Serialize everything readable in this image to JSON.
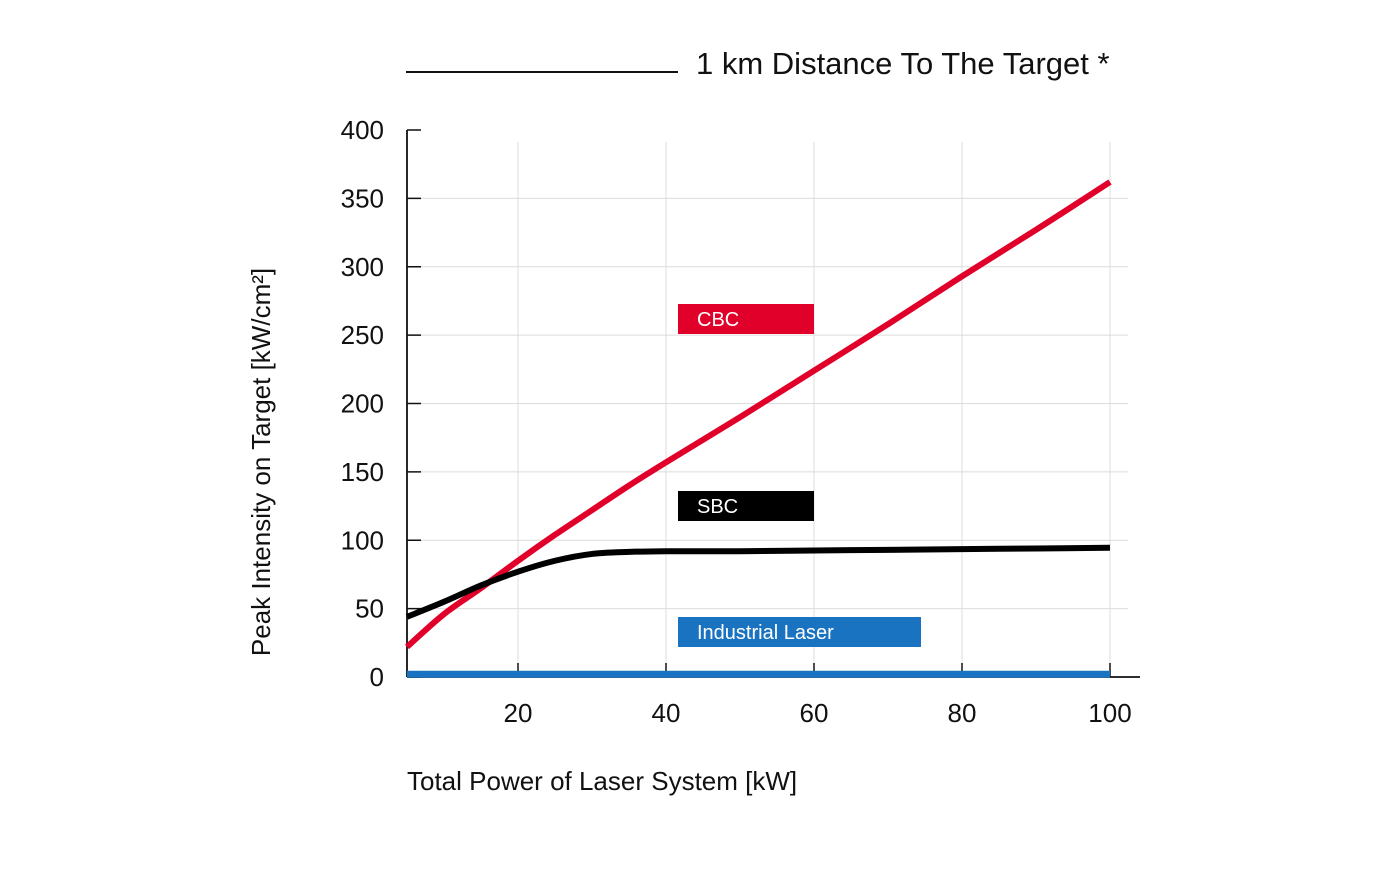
{
  "chart_data": {
    "type": "line",
    "title": "1 km Distance To The Target *",
    "xlabel": "Total Power of Laser System [kW]",
    "ylabel": "Peak Intensity on Target [kW/cm²]",
    "xlim": [
      5,
      100
    ],
    "ylim": [
      0,
      400
    ],
    "x_ticks": [
      20,
      40,
      60,
      80,
      100
    ],
    "y_ticks": [
      0,
      50,
      100,
      150,
      200,
      250,
      300,
      350,
      400
    ],
    "grid": true,
    "legend_placement": "inside-center",
    "series": [
      {
        "name": "CBC",
        "color": "#e0002a",
        "points": [
          [
            5,
            22
          ],
          [
            10,
            46
          ],
          [
            15,
            65
          ],
          [
            20,
            85
          ],
          [
            25,
            104
          ],
          [
            30,
            122
          ],
          [
            35,
            140
          ],
          [
            40,
            157
          ],
          [
            50,
            190
          ],
          [
            60,
            224
          ],
          [
            70,
            258
          ],
          [
            80,
            293
          ],
          [
            90,
            327
          ],
          [
            100,
            362
          ]
        ]
      },
      {
        "name": "SBC",
        "color": "#000000",
        "points": [
          [
            5,
            44
          ],
          [
            10,
            55
          ],
          [
            15,
            67
          ],
          [
            20,
            77
          ],
          [
            25,
            85
          ],
          [
            30,
            90
          ],
          [
            35,
            91.5
          ],
          [
            40,
            92
          ],
          [
            50,
            92
          ],
          [
            60,
            92.5
          ],
          [
            70,
            93
          ],
          [
            80,
            93.5
          ],
          [
            90,
            94
          ],
          [
            100,
            94.5
          ]
        ]
      },
      {
        "name": "Industrial Laser",
        "color": "#1a73c0",
        "points": [
          [
            5,
            2
          ],
          [
            100,
            2
          ]
        ]
      }
    ]
  }
}
